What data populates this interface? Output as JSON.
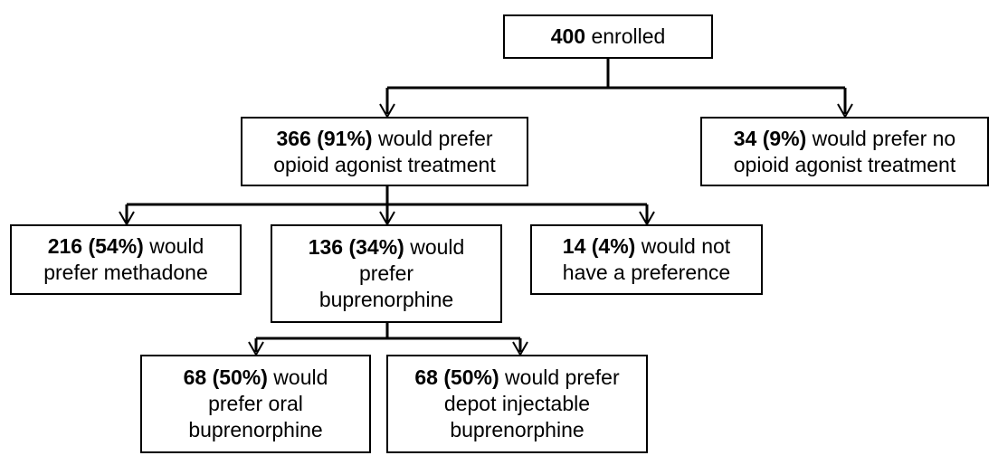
{
  "nodes": {
    "enrolled": {
      "bold": "400",
      "lines": [
        " enrolled"
      ]
    },
    "oat": {
      "bold": "366 (91%)",
      "lines": [
        " would prefer",
        "opioid agonist treatment"
      ]
    },
    "no_oat": {
      "bold": "34 (9%)",
      "lines": [
        " would prefer no",
        "opioid agonist treatment"
      ]
    },
    "methadone": {
      "bold": "216 (54%)",
      "lines": [
        " would",
        "prefer methadone"
      ]
    },
    "buprenorphine": {
      "bold": "136 (34%)",
      "lines": [
        " would",
        "prefer",
        "buprenorphine"
      ]
    },
    "no_preference": {
      "bold": "14 (4%)",
      "lines": [
        " would not",
        "have a preference"
      ]
    },
    "oral": {
      "bold": "68 (50%)",
      "lines": [
        " would",
        "prefer oral",
        "buprenorphine"
      ]
    },
    "depot": {
      "bold": "68 (50%)",
      "lines": [
        " would prefer",
        "depot injectable",
        "buprenorphine"
      ]
    }
  },
  "colors": {
    "line": "#000000",
    "background": "#ffffff"
  }
}
